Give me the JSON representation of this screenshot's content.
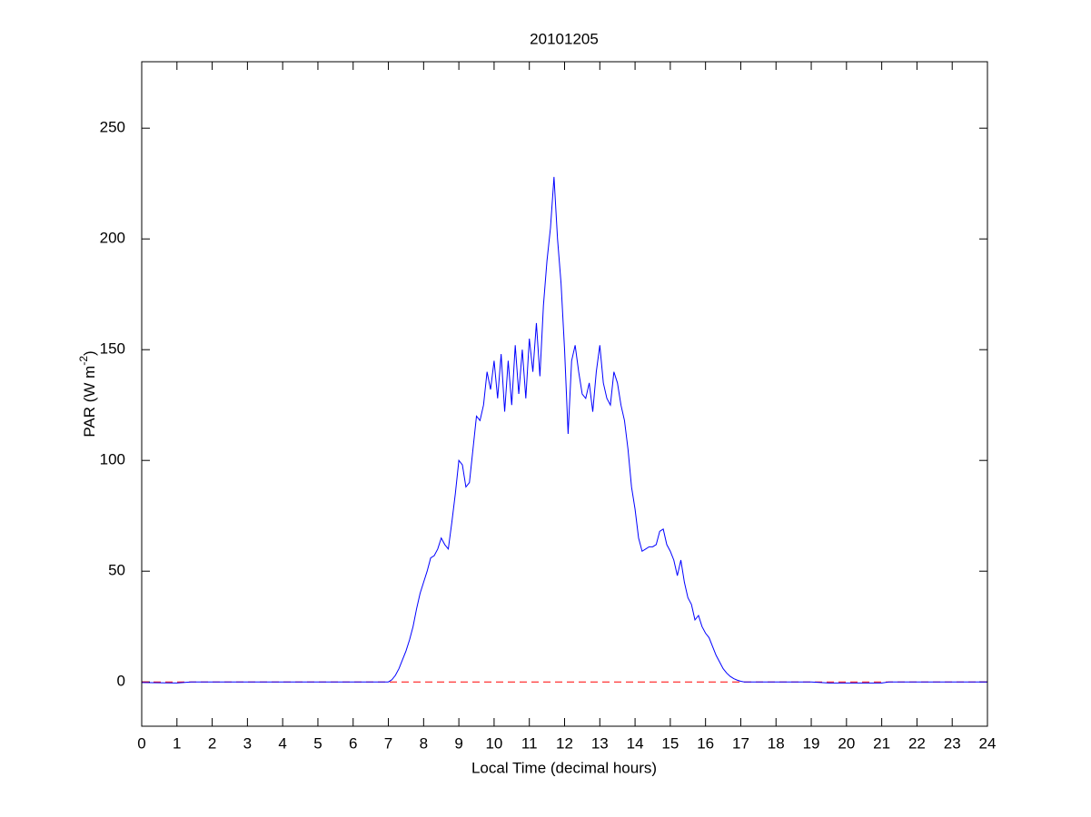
{
  "chart_data": {
    "type": "line",
    "title": "20101205",
    "xlabel": "Local Time (decimal hours)",
    "ylabel": [
      "PAR (W m",
      "-2",
      ")"
    ],
    "xlim": [
      0,
      24
    ],
    "ylim": [
      -20,
      280
    ],
    "xticks": [
      0,
      1,
      2,
      3,
      4,
      5,
      6,
      7,
      8,
      9,
      10,
      11,
      12,
      13,
      14,
      15,
      16,
      17,
      18,
      19,
      20,
      21,
      22,
      23,
      24
    ],
    "yticks": [
      0,
      50,
      100,
      150,
      200,
      250
    ],
    "reference_line": {
      "value": 0,
      "color": "#ff0000",
      "dashed": true
    },
    "series": [
      {
        "color": "#0000ff",
        "x": [
          0,
          1,
          1.4,
          6.9,
          7,
          7.1,
          7.2,
          7.3,
          7.4,
          7.5,
          7.6,
          7.7,
          7.8,
          7.9,
          8,
          8.1,
          8.2,
          8.3,
          8.4,
          8.5,
          8.6,
          8.7,
          8.8,
          8.9,
          9,
          9.1,
          9.2,
          9.3,
          9.4,
          9.5,
          9.6,
          9.7,
          9.8,
          9.9,
          10,
          10.1,
          10.2,
          10.3,
          10.4,
          10.5,
          10.6,
          10.7,
          10.8,
          10.9,
          11,
          11.1,
          11.2,
          11.3,
          11.4,
          11.5,
          11.6,
          11.7,
          11.8,
          11.9,
          12,
          12.1,
          12.2,
          12.3,
          12.4,
          12.5,
          12.6,
          12.7,
          12.8,
          12.9,
          13,
          13.1,
          13.2,
          13.3,
          13.4,
          13.5,
          13.6,
          13.7,
          13.8,
          13.9,
          14,
          14.1,
          14.2,
          14.3,
          14.4,
          14.5,
          14.6,
          14.7,
          14.8,
          14.9,
          15,
          15.1,
          15.2,
          15.3,
          15.4,
          15.5,
          15.6,
          15.7,
          15.8,
          15.9,
          16,
          16.1,
          16.2,
          16.3,
          16.4,
          16.5,
          16.6,
          16.7,
          16.8,
          16.9,
          17,
          17.1,
          19,
          19.5,
          21,
          21.2,
          24
        ],
        "values": [
          -0.3,
          -0.5,
          0,
          0,
          0,
          1,
          3,
          6,
          10,
          14,
          19,
          25,
          33,
          40,
          45,
          50,
          56,
          57,
          60,
          65,
          62,
          60,
          72,
          85,
          100,
          98,
          88,
          90,
          105,
          120,
          118,
          125,
          140,
          132,
          145,
          128,
          148,
          122,
          145,
          125,
          152,
          130,
          150,
          128,
          155,
          140,
          162,
          138,
          170,
          190,
          205,
          228,
          200,
          180,
          150,
          112,
          145,
          152,
          140,
          130,
          128,
          135,
          122,
          140,
          152,
          135,
          128,
          125,
          140,
          135,
          125,
          118,
          105,
          88,
          78,
          65,
          59,
          60,
          61,
          61,
          62,
          68,
          69,
          62,
          59,
          55,
          48,
          55,
          45,
          38,
          35,
          28,
          30,
          25,
          22,
          20,
          16,
          12,
          9,
          6,
          4,
          2.5,
          1.5,
          0.8,
          0.3,
          0,
          0,
          -0.5,
          -0.5,
          0,
          0
        ]
      }
    ]
  }
}
